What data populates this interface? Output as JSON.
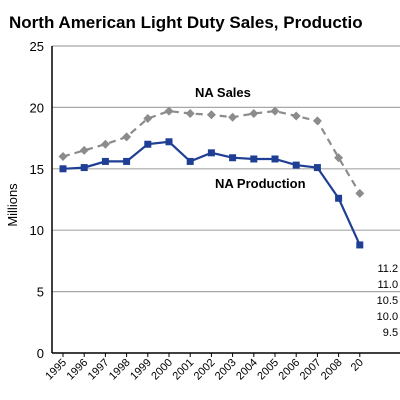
{
  "chart_data": {
    "type": "line",
    "title": "North American Light Duty Sales, Productio",
    "xlabel": "",
    "ylabel": "Millions",
    "ylim": [
      0,
      25
    ],
    "yticks": [
      "0",
      "5",
      "10",
      "15",
      "20",
      "25"
    ],
    "grid": true,
    "legend": "inline labels",
    "x": [
      "1995",
      "1996",
      "1997",
      "1998",
      "1999",
      "2000",
      "2001",
      "2002",
      "2003",
      "2004",
      "2005",
      "2006",
      "2007",
      "2008",
      "20"
    ],
    "series": [
      {
        "name": "NA Sales",
        "color": "#8c8c8c",
        "line_style": "dashed",
        "marker": "diamond",
        "values": [
          16.0,
          16.5,
          17.0,
          17.6,
          19.1,
          19.7,
          19.5,
          19.4,
          19.2,
          19.5,
          19.7,
          19.3,
          18.9,
          15.9,
          13.0
        ]
      },
      {
        "name": "NA Production",
        "color": "#1f3f95",
        "line_style": "solid",
        "marker": "square",
        "values": [
          15.0,
          15.1,
          15.6,
          15.6,
          17.0,
          17.2,
          15.6,
          16.3,
          15.9,
          15.8,
          15.8,
          15.3,
          15.1,
          12.6,
          8.8
        ]
      }
    ],
    "side_labels": [
      "11.2 |",
      "11.0 |",
      "10.5 |",
      "10.0 |",
      "9.5 |"
    ]
  }
}
